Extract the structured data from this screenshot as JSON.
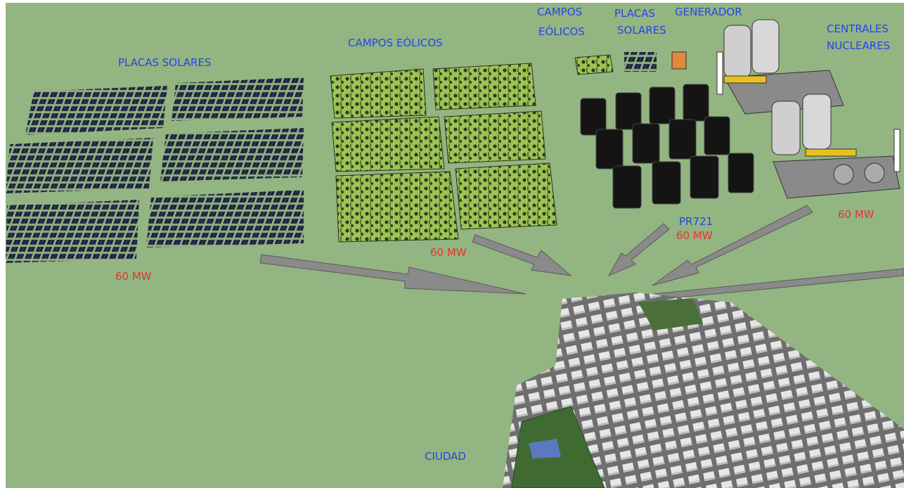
{
  "labels": {
    "solar_large": "PLACAS SOLARES",
    "wind_large": "CAMPOS EÓLICOS",
    "wind_small": [
      "CAMPOS",
      "EÓLICOS"
    ],
    "solar_small": [
      "PLACAS",
      "SOLARES"
    ],
    "generator": "GENERADOR",
    "nuclear": [
      "CENTRALES",
      "NUCLEARES"
    ],
    "pr": "PR721",
    "city": "CIUDAD"
  },
  "outputs": {
    "solar": "60 MW",
    "wind": "60 MW",
    "pr": "60 MW",
    "nuclear": "60 MW"
  }
}
